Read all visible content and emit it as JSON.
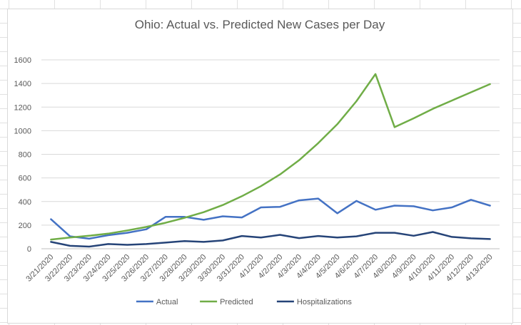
{
  "chart_data": {
    "type": "line",
    "title": "Ohio: Actual vs. Predicted New Cases per Day",
    "xlabel": "",
    "ylabel": "",
    "ylim": [
      0,
      1600
    ],
    "yticks": [
      0,
      200,
      400,
      600,
      800,
      1000,
      1200,
      1400,
      1600
    ],
    "grid": true,
    "legend_position": "bottom",
    "categories": [
      "3/21/2020",
      "3/22/2020",
      "3/23/2020",
      "3/24/2020",
      "3/25/2020",
      "3/26/2020",
      "3/27/2020",
      "3/28/2020",
      "3/29/2020",
      "3/30/2020",
      "3/31/2020",
      "4/1/2020",
      "4/2/2020",
      "4/3/2020",
      "4/4/2020",
      "4/5/2020",
      "4/6/2020",
      "4/7/2020",
      "4/8/2020",
      "4/9/2020",
      "4/10/2020",
      "4/11/2020",
      "4/12/2020",
      "4/13/2020"
    ],
    "series": [
      {
        "name": "Actual",
        "color": "#4472c4",
        "values": [
          250,
          105,
          85,
          115,
          135,
          165,
          270,
          270,
          245,
          275,
          265,
          350,
          355,
          410,
          425,
          300,
          405,
          330,
          365,
          360,
          325,
          350,
          415,
          365
        ]
      },
      {
        "name": "Predicted",
        "color": "#70ad47",
        "values": [
          78,
          95,
          110,
          128,
          155,
          185,
          220,
          262,
          310,
          370,
          445,
          530,
          630,
          750,
          895,
          1055,
          1250,
          1480,
          1030,
          1105,
          1185,
          1255,
          1325,
          1395
        ]
      },
      {
        "name": "Hospitalizations",
        "color": "#264478",
        "values": [
          58,
          25,
          18,
          40,
          33,
          40,
          52,
          65,
          58,
          70,
          108,
          95,
          118,
          90,
          108,
          95,
          105,
          135,
          135,
          110,
          142,
          100,
          88,
          82
        ]
      }
    ]
  }
}
